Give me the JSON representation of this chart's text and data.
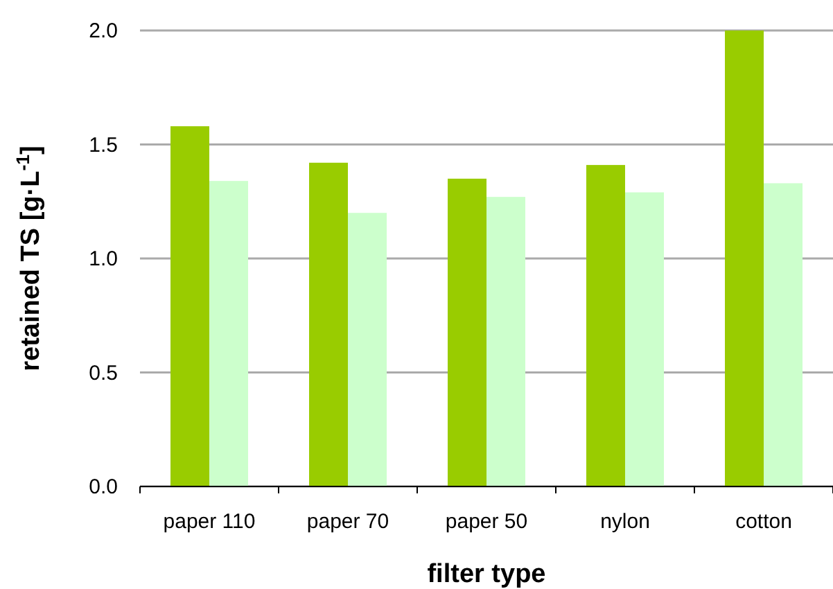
{
  "chart_data": {
    "type": "bar",
    "xlabel": "filter type",
    "ylabel": "retained TS [g·L$^{-1}$]",
    "categories": [
      "paper 110",
      "paper 70",
      "paper 50",
      "nylon",
      "cotton"
    ],
    "series": [
      {
        "color": "#99cc00",
        "values": [
          1.58,
          1.42,
          1.35,
          1.41,
          2.0
        ]
      },
      {
        "color": "#ccffcc",
        "values": [
          1.34,
          1.2,
          1.27,
          1.29,
          1.33
        ]
      }
    ],
    "ylim": [
      0,
      2
    ],
    "yticks": [
      {
        "value": 0,
        "label": "0.0"
      },
      {
        "value": 0.5,
        "label": "0.5"
      },
      {
        "value": 1,
        "label": "1.0"
      },
      {
        "value": 1.5,
        "label": "1.5"
      },
      {
        "value": 2,
        "label": "2.0"
      }
    ],
    "grid": "y"
  }
}
